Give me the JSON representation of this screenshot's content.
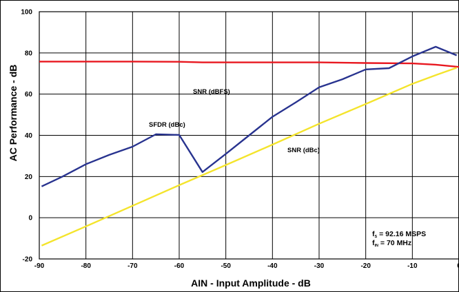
{
  "chart_data": {
    "type": "line",
    "xlabel": "AIN - Input Amplitude - dB",
    "ylabel": "AC Performance - dB",
    "xlim": [
      -90,
      0
    ],
    "ylim": [
      -20,
      100
    ],
    "x_ticks": [
      -90,
      -80,
      -70,
      -60,
      -50,
      -40,
      -30,
      -20,
      -10,
      0
    ],
    "y_ticks": [
      -20,
      0,
      20,
      40,
      60,
      80,
      100
    ],
    "grid": true,
    "colors": {
      "snr_dbfs": "#e8171f",
      "sfdr_dbc": "#28338f",
      "snr_dbc": "#f4e42c"
    },
    "series": [
      {
        "name": "SNR (dBFS)",
        "color_key": "snr_dbfs",
        "x": [
          -90,
          -80,
          -70,
          -60,
          -55,
          -50,
          -40,
          -30,
          -20,
          -10,
          -5,
          0
        ],
        "y": [
          75.8,
          75.8,
          75.8,
          75.7,
          75.4,
          75.4,
          75.4,
          75.4,
          75.1,
          74.9,
          74.3,
          73.2
        ]
      },
      {
        "name": "SFDR (dBc)",
        "color_key": "sfdr_dbc",
        "x": [
          -89.5,
          -85,
          -80,
          -75,
          -70,
          -65,
          -60,
          -55,
          -50,
          -45,
          -40,
          -35,
          -30,
          -25,
          -20,
          -15,
          -10,
          -5,
          -0.5
        ],
        "y": [
          15.2,
          20,
          26,
          30.5,
          34.5,
          40.5,
          40.2,
          22.2,
          31,
          40,
          49,
          56,
          63.3,
          67.2,
          72,
          72.6,
          78.3,
          83,
          78.8
        ]
      },
      {
        "name": "SNR (dBc)",
        "color_key": "snr_dbc",
        "x": [
          -89.5,
          -80,
          -70,
          -60,
          -50,
          -40,
          -30,
          -20,
          -10,
          -5,
          -0.5
        ],
        "y": [
          -13.5,
          -4.2,
          5.8,
          15.8,
          25.6,
          35.5,
          45.6,
          55.2,
          65,
          69.2,
          72.8
        ]
      }
    ],
    "annotations": {
      "fs_label": "f",
      "fs_sub": "S",
      "fs_value": " = 92.16 MSPS",
      "fin_label": "f",
      "fin_sub": "IN",
      "fin_value": " = 70 MHz"
    }
  }
}
